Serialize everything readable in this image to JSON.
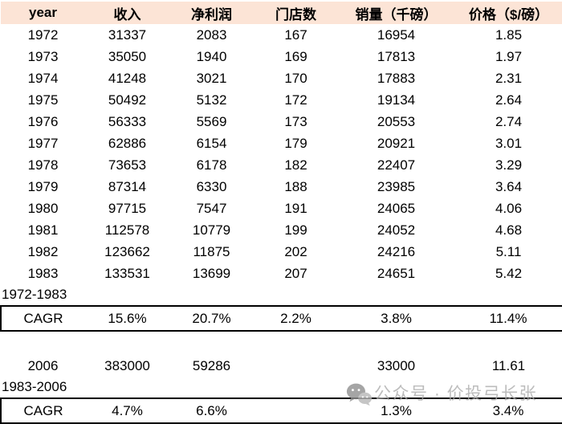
{
  "colors": {
    "header_bg": "#FCE4D6",
    "border": "#000000",
    "text": "#000000",
    "watermark_text": "#ACACAC",
    "watermark_icon_dark": "#8F8F8F",
    "watermark_icon_light": "#B7B7B7"
  },
  "watermark": {
    "icon": "wechat-icon",
    "text": "公众号 · 价投弓长张"
  },
  "table": {
    "columns": [
      "year",
      "收入",
      "净利润",
      "门店数",
      "销量（千磅）",
      "价格（$/磅）"
    ],
    "data_rows": [
      [
        "1972",
        "31337",
        "2083",
        "167",
        "16954",
        "1.85"
      ],
      [
        "1973",
        "35050",
        "1940",
        "169",
        "17813",
        "1.97"
      ],
      [
        "1974",
        "41248",
        "3021",
        "170",
        "17883",
        "2.31"
      ],
      [
        "1975",
        "50492",
        "5132",
        "172",
        "19134",
        "2.64"
      ],
      [
        "1976",
        "56333",
        "5569",
        "173",
        "20553",
        "2.74"
      ],
      [
        "1977",
        "62886",
        "6154",
        "179",
        "20921",
        "3.01"
      ],
      [
        "1978",
        "73653",
        "6178",
        "182",
        "22407",
        "3.29"
      ],
      [
        "1979",
        "87314",
        "6330",
        "188",
        "23985",
        "3.64"
      ],
      [
        "1980",
        "97715",
        "7547",
        "191",
        "24065",
        "4.06"
      ],
      [
        "1981",
        "112578",
        "10779",
        "199",
        "24052",
        "4.68"
      ],
      [
        "1982",
        "123662",
        "11875",
        "202",
        "24216",
        "5.11"
      ],
      [
        "1983",
        "133531",
        "13699",
        "207",
        "24651",
        "5.42"
      ]
    ],
    "section1_label": "1972-1983",
    "cagr1_row": [
      "CAGR",
      "15.6%",
      "20.7%",
      "2.2%",
      "3.8%",
      "11.4%"
    ],
    "row_2006": [
      "2006",
      "383000",
      "59286",
      "",
      "33000",
      "11.61"
    ],
    "section2_label": "1983-2006",
    "cagr2_row": [
      "CAGR",
      "4.7%",
      "6.6%",
      "",
      "1.3%",
      "3.4%"
    ]
  },
  "chart_data": {
    "type": "table",
    "columns": [
      "year",
      "收入",
      "净利润",
      "门店数",
      "销量（千磅）",
      "价格（$/磅）"
    ],
    "rows": [
      [
        "1972",
        31337,
        2083,
        167,
        16954,
        1.85
      ],
      [
        "1973",
        35050,
        1940,
        169,
        17813,
        1.97
      ],
      [
        "1974",
        41248,
        3021,
        170,
        17883,
        2.31
      ],
      [
        "1975",
        50492,
        5132,
        172,
        19134,
        2.64
      ],
      [
        "1976",
        56333,
        5569,
        173,
        20553,
        2.74
      ],
      [
        "1977",
        62886,
        6154,
        179,
        20921,
        3.01
      ],
      [
        "1978",
        73653,
        6178,
        182,
        22407,
        3.29
      ],
      [
        "1979",
        87314,
        6330,
        188,
        23985,
        3.64
      ],
      [
        "1980",
        97715,
        7547,
        191,
        24065,
        4.06
      ],
      [
        "1981",
        112578,
        10779,
        199,
        24052,
        4.68
      ],
      [
        "1982",
        123662,
        11875,
        202,
        24216,
        5.11
      ],
      [
        "1983",
        133531,
        13699,
        207,
        24651,
        5.42
      ]
    ],
    "summary_sections": [
      {
        "period": "1972-1983",
        "label": "CAGR",
        "values": {
          "收入": "15.6%",
          "净利润": "20.7%",
          "门店数": "2.2%",
          "销量（千磅）": "3.8%",
          "价格（$/磅）": "11.4%"
        }
      },
      {
        "single_year_row": {
          "year": "2006",
          "收入": 383000,
          "净利润": 59286,
          "门店数": null,
          "销量（千磅）": 33000,
          "价格（$/磅）": 11.61
        }
      },
      {
        "period": "1983-2006",
        "label": "CAGR",
        "values": {
          "收入": "4.7%",
          "净利润": "6.6%",
          "门店数": null,
          "销量（千磅）": "1.3%",
          "价格（$/磅）": "3.4%"
        }
      }
    ],
    "title": "",
    "notes": "Financial table: revenue, net profit, store count, volume (thousand lbs), price ($/lb) with CAGR summary rows for 1972-1983 and 1983-2006"
  }
}
